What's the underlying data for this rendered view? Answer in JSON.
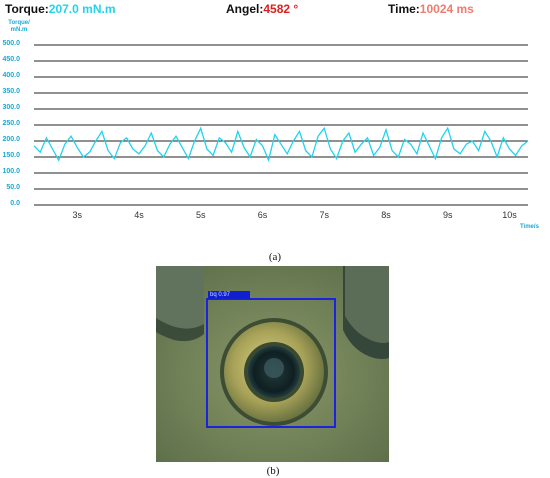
{
  "header": {
    "torque_label": "Torque:",
    "torque_value": "207.0 mN.m",
    "angle_label": "Angel:",
    "angle_value": "4582 °",
    "time_label": "Time:",
    "time_value": "10024 ms"
  },
  "chart_data": {
    "type": "line",
    "ylabel": "Torque/ mN.m",
    "xlabel": "Time/s",
    "ylim": [
      0,
      500
    ],
    "yticks": [
      "500.0",
      "450.0",
      "400.0",
      "350.0",
      "300.0",
      "250.0",
      "200.0",
      "150.0",
      "100.0",
      "50.0",
      "0.0"
    ],
    "xticks": [
      "3s",
      "4s",
      "5s",
      "6s",
      "7s",
      "8s",
      "9s",
      "10s"
    ],
    "xlim": [
      2.3,
      10.3
    ],
    "grid": "horizontal",
    "line_color": "#22d3ee",
    "series": [
      {
        "x": [
          2.3,
          2.4,
          2.5,
          2.6,
          2.7,
          2.8,
          2.9,
          3.0,
          3.1,
          3.2,
          3.3,
          3.4,
          3.5,
          3.6,
          3.7,
          3.8,
          3.9,
          4.0,
          4.1,
          4.2,
          4.3,
          4.4,
          4.5,
          4.6,
          4.7,
          4.8,
          4.9,
          5.0,
          5.1,
          5.2,
          5.3,
          5.4,
          5.5,
          5.6,
          5.7,
          5.8,
          5.9,
          6.0,
          6.1,
          6.2,
          6.3,
          6.4,
          6.5,
          6.6,
          6.7,
          6.8,
          6.9,
          7.0,
          7.1,
          7.2,
          7.3,
          7.4,
          7.5,
          7.6,
          7.7,
          7.8,
          7.9,
          8.0,
          8.1,
          8.2,
          8.3,
          8.4,
          8.5,
          8.6,
          8.7,
          8.8,
          8.9,
          9.0,
          9.1,
          9.2,
          9.3,
          9.4,
          9.5,
          9.6,
          9.7,
          9.8,
          9.9,
          10.0,
          10.1,
          10.2,
          10.3
        ],
        "y": [
          185,
          165,
          210,
          175,
          140,
          190,
          215,
          180,
          150,
          165,
          200,
          230,
          170,
          145,
          195,
          210,
          175,
          160,
          185,
          225,
          170,
          150,
          190,
          215,
          180,
          145,
          200,
          240,
          175,
          155,
          210,
          195,
          165,
          230,
          180,
          150,
          205,
          185,
          140,
          220,
          190,
          160,
          200,
          230,
          170,
          150,
          215,
          240,
          175,
          145,
          200,
          225,
          165,
          190,
          210,
          155,
          180,
          235,
          170,
          150,
          205,
          190,
          160,
          225,
          185,
          145,
          210,
          240,
          175,
          160,
          190,
          200,
          170,
          230,
          200,
          150,
          210,
          175,
          155,
          185,
          200
        ]
      }
    ],
    "caption": "(a)"
  },
  "photo": {
    "detection_label": "bq 0.97",
    "caption": "(b)"
  }
}
